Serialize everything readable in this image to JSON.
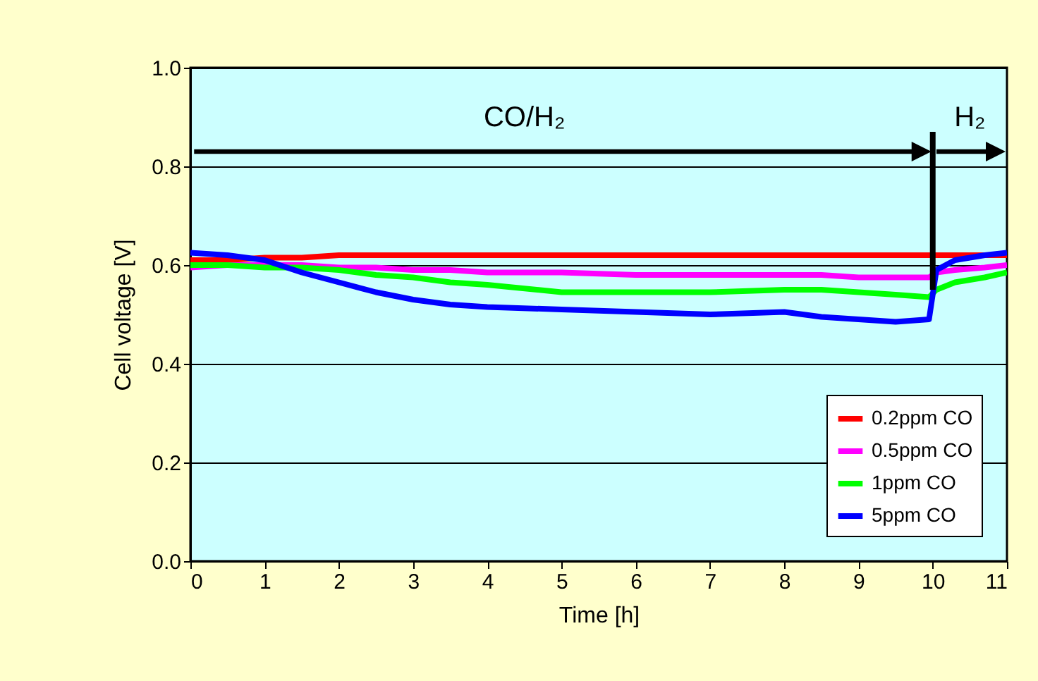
{
  "chart_data": {
    "type": "line",
    "xlabel": "Time [h]",
    "ylabel": "Cell voltage [V]",
    "x": [
      0,
      0.5,
      1,
      1.5,
      2,
      2.5,
      3,
      3.5,
      4,
      5,
      6,
      7,
      8,
      8.5,
      9,
      9.5,
      9.95,
      10.05,
      10.3,
      10.7,
      11
    ],
    "series": [
      {
        "name": "0.2ppm CO",
        "color": "#ff0000",
        "values": [
          0.61,
          0.61,
          0.615,
          0.615,
          0.62,
          0.62,
          0.62,
          0.62,
          0.62,
          0.62,
          0.62,
          0.62,
          0.62,
          0.62,
          0.62,
          0.62,
          0.62,
          0.62,
          0.62,
          0.62,
          0.62
        ]
      },
      {
        "name": "0.5ppm CO",
        "color": "#ff00ff",
        "values": [
          0.595,
          0.6,
          0.6,
          0.6,
          0.595,
          0.595,
          0.59,
          0.59,
          0.585,
          0.585,
          0.58,
          0.58,
          0.58,
          0.58,
          0.575,
          0.575,
          0.575,
          0.585,
          0.59,
          0.595,
          0.6
        ]
      },
      {
        "name": "1ppm CO",
        "color": "#00ff00",
        "values": [
          0.6,
          0.6,
          0.595,
          0.595,
          0.59,
          0.58,
          0.575,
          0.565,
          0.56,
          0.545,
          0.545,
          0.545,
          0.55,
          0.55,
          0.545,
          0.54,
          0.535,
          0.55,
          0.565,
          0.575,
          0.585
        ]
      },
      {
        "name": "5ppm CO",
        "color": "#0000ff",
        "values": [
          0.625,
          0.62,
          0.61,
          0.585,
          0.565,
          0.545,
          0.53,
          0.52,
          0.515,
          0.51,
          0.505,
          0.5,
          0.505,
          0.495,
          0.49,
          0.485,
          0.49,
          0.59,
          0.61,
          0.62,
          0.625
        ]
      }
    ],
    "xlim": [
      0,
      11
    ],
    "xticks": [
      0,
      1,
      2,
      3,
      4,
      5,
      6,
      7,
      8,
      9,
      10,
      11
    ],
    "ylim": [
      0,
      1
    ],
    "yticks": [
      {
        "value": 0,
        "label": "0.0"
      },
      {
        "value": 0.2,
        "label": "0.2"
      },
      {
        "value": 0.4,
        "label": "0.4"
      },
      {
        "value": 0.6,
        "label": "0.6"
      },
      {
        "value": 0.8,
        "label": "0.8"
      },
      {
        "value": 1,
        "label": "1.0"
      }
    ],
    "grid": "y",
    "legend": "bottom right",
    "ref_lines": [
      {
        "axis": "x",
        "value": 10,
        "color": "#000000"
      }
    ],
    "annotations": [
      "CO/H₂",
      "H₂"
    ]
  }
}
